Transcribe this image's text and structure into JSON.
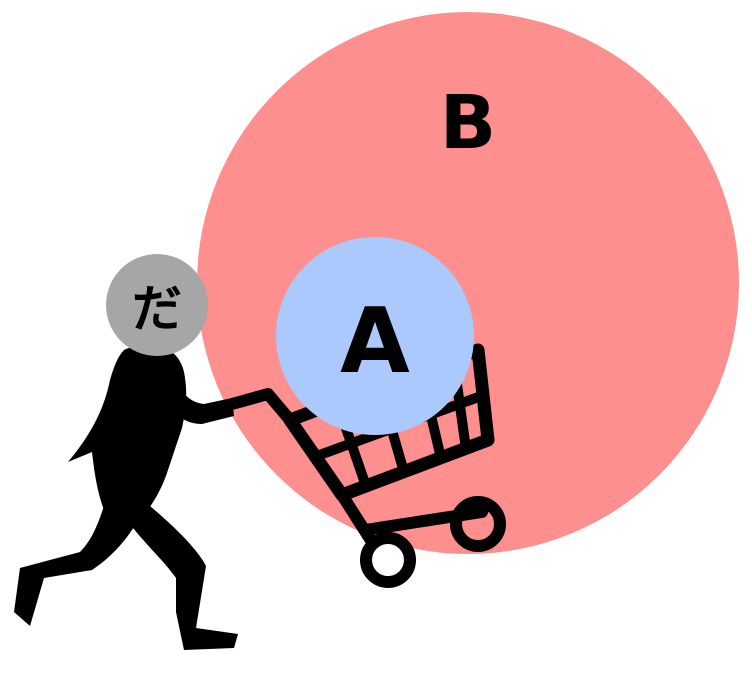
{
  "set_b": {
    "label": "B",
    "color": "#fd8f8f"
  },
  "set_a": {
    "label": "A",
    "color": "#abc9fc"
  },
  "person": {
    "head_text": "だ",
    "head_color": "#a6a6a6",
    "body_color": "#000000"
  },
  "cart": {
    "color": "#000000"
  }
}
